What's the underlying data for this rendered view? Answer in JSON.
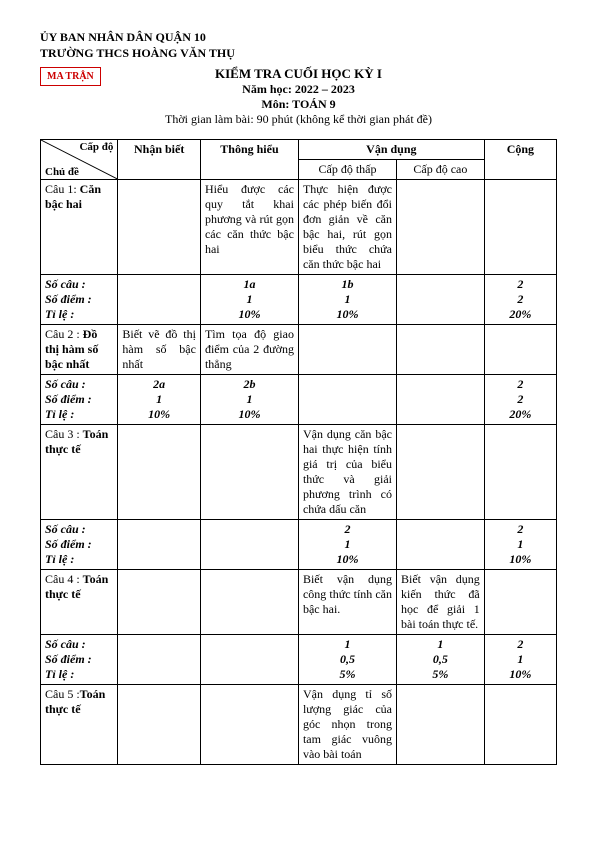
{
  "header": {
    "org1": "ỦY BAN NHÂN DÂN QUẬN 10",
    "org2": "TRƯỜNG THCS HOÀNG VĂN THỤ",
    "badge": "MA TRẬN"
  },
  "title": {
    "main": "KIỂM TRA CUỐI HỌC KỲ I",
    "year": "Năm học: 2022 – 2023",
    "subject": "Môn: TOÁN 9",
    "time": "Thời gian làm bài: 90 phút (không kể thời gian phát đề)"
  },
  "thead": {
    "capdo": "Cấp độ",
    "chude": "Chủ đề",
    "nhanbiet": "Nhận biết",
    "thonghieu": "Thông hiểu",
    "vandung": "Vận dụng",
    "vd_thap": "Cấp độ thấp",
    "vd_cao": "Cấp độ cao",
    "cong": "Cộng"
  },
  "labels": {
    "socau": "Số câu :",
    "sodiem": "Số điểm :",
    "tile": "Tỉ lệ :"
  },
  "rows": [
    {
      "topic_html": "Câu 1: <b>Căn bậc hai</b>",
      "nb": "",
      "th": "Hiểu được các quy tắt khai phương và rút gọn các căn thức bậc hai",
      "vt": "Thực hiện được các phép biến đổi đơn giản về căn bậc hai, rút gọn biểu thức chứa căn thức bậc hai",
      "vc": "",
      "sum": {
        "nb": [
          "",
          "",
          ""
        ],
        "th": [
          "1a",
          "1",
          "10%"
        ],
        "vt": [
          "1b",
          "1",
          "10%"
        ],
        "vc": [
          "",
          "",
          ""
        ],
        "cong": [
          "2",
          "2",
          "20%"
        ]
      }
    },
    {
      "topic_html": "Câu 2 : <b>Đồ thị hàm số bậc nhất</b>",
      "nb": "Biết vẽ đồ thị hàm số bậc nhất",
      "th": "Tìm tọa độ giao điểm của 2 đường thẳng",
      "vt": "",
      "vc": "",
      "sum": {
        "nb": [
          "2a",
          "1",
          "10%"
        ],
        "th": [
          "2b",
          "1",
          "10%"
        ],
        "vt": [
          "",
          "",
          ""
        ],
        "vc": [
          "",
          "",
          ""
        ],
        "cong": [
          "2",
          "2",
          "20%"
        ]
      }
    },
    {
      "topic_html": "Câu 3 : <b>Toán thực tế</b>",
      "nb": "",
      "th": "",
      "vt": "Vận dụng căn bậc hai thực hiện tính giá trị của biểu thức  và giải phương trình có chứa dấu căn",
      "vc": "",
      "sum": {
        "nb": [
          "",
          "",
          ""
        ],
        "th": [
          "",
          "",
          ""
        ],
        "vt": [
          "2",
          "1",
          "10%"
        ],
        "vc": [
          "",
          "",
          ""
        ],
        "cong": [
          "2",
          "1",
          "10%"
        ]
      }
    },
    {
      "topic_html": "Câu 4 : <b>Toán thực tế</b>",
      "nb": "",
      "th": "",
      "vt": "Biết vận dụng công thức tính căn bậc hai.",
      "vc": "Biết vận dụng kiến thức đã học để giải 1 bài toán thực tế.",
      "sum": {
        "nb": [
          "",
          "",
          ""
        ],
        "th": [
          "",
          "",
          ""
        ],
        "vt": [
          "1",
          "0,5",
          "5%"
        ],
        "vc": [
          "1",
          "0,5",
          "5%"
        ],
        "cong": [
          "2",
          "1",
          "10%"
        ]
      }
    },
    {
      "topic_html": "Câu 5 :<b>Toán thực tế</b>",
      "nb": "",
      "th": "",
      "vt": "Vận dụng tỉ số lượng giác của góc nhọn trong tam giác vuông vào bài toán",
      "vc": "",
      "sum": null
    }
  ]
}
